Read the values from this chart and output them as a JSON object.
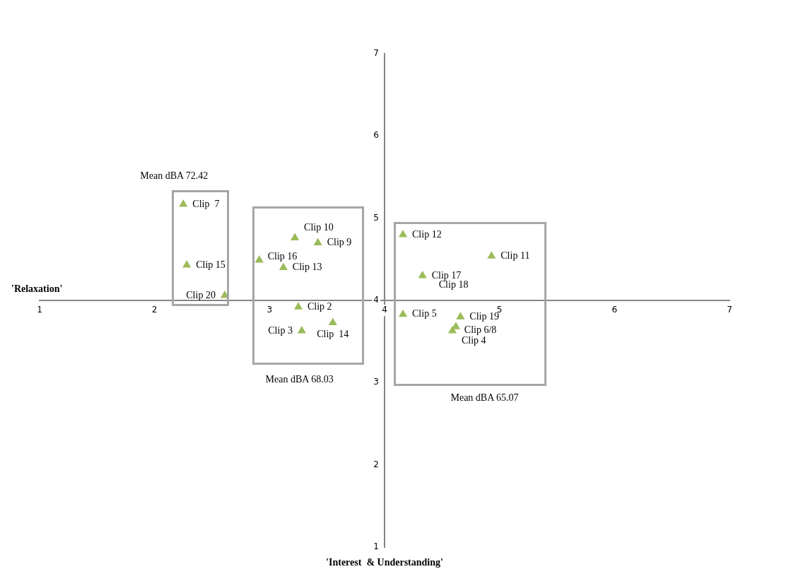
{
  "chart_data": {
    "type": "scatter",
    "ylabel": "'Relaxation'",
    "xlabel": "'Interest  & Understanding'",
    "xlim": [
      1,
      7
    ],
    "xticks": [
      1,
      2,
      3,
      4,
      5,
      6,
      7
    ],
    "ylim": [
      1,
      7
    ],
    "yticks": [
      1,
      2,
      3,
      4,
      5,
      6,
      7
    ],
    "grid": false,
    "legend": false,
    "marker": "triangle",
    "series": [
      {
        "name": "Clip  7",
        "color": "#9bbb59",
        "x": [
          2.25
        ],
        "values": [
          5.17
        ]
      },
      {
        "name": "Clip 15",
        "color": "#9bbb59",
        "x": [
          2.28
        ],
        "values": [
          4.43
        ]
      },
      {
        "name": "Clip 20",
        "color": "#9bbb59",
        "x": [
          2.61
        ],
        "values": [
          4.06
        ]
      },
      {
        "name": "Clip 10",
        "color": "#9bbb59",
        "x": [
          3.22
        ],
        "values": [
          4.76
        ]
      },
      {
        "name": "Clip 9",
        "color": "#9bbb59",
        "x": [
          3.42
        ],
        "values": [
          4.7
        ]
      },
      {
        "name": "Clip 16",
        "color": "#9bbb59",
        "x": [
          2.91
        ],
        "values": [
          4.49
        ]
      },
      {
        "name": "Clip 13",
        "color": "#9bbb59",
        "x": [
          3.12
        ],
        "values": [
          4.4
        ]
      },
      {
        "name": "Clip 2",
        "color": "#9bbb59",
        "x": [
          3.25
        ],
        "values": [
          3.92
        ]
      },
      {
        "name": "Clip  14",
        "color": "#9bbb59",
        "x": [
          3.55
        ],
        "values": [
          3.73
        ]
      },
      {
        "name": "Clip 3",
        "color": "#9bbb59",
        "x": [
          3.28
        ],
        "values": [
          3.63
        ]
      },
      {
        "name": "Clip 12",
        "color": "#9bbb59",
        "x": [
          4.16
        ],
        "values": [
          4.8
        ]
      },
      {
        "name": "Clip 11",
        "color": "#9bbb59",
        "x": [
          4.93
        ],
        "values": [
          4.54
        ]
      },
      {
        "name": "Clip 17",
        "color": "#9bbb59",
        "x": [
          4.33
        ],
        "values": [
          4.3
        ]
      },
      {
        "name": "Clip 5",
        "color": "#9bbb59",
        "x": [
          4.16
        ],
        "values": [
          3.83
        ]
      },
      {
        "name": "Clip 19",
        "color": "#9bbb59",
        "x": [
          4.66
        ],
        "values": [
          3.8
        ]
      },
      {
        "name": "Clip 6/8",
        "color": "#9bbb59",
        "x": [
          4.62
        ],
        "values": [
          3.68
        ]
      },
      {
        "name": "Clip 4",
        "color": "#9bbb59",
        "x": [
          4.59
        ],
        "values": [
          3.63
        ]
      }
    ],
    "annotations": [
      "Clip 18",
      "Mean dBA 72.42",
      "Mean dBA 68.03",
      "Mean dBA 65.07"
    ]
  }
}
